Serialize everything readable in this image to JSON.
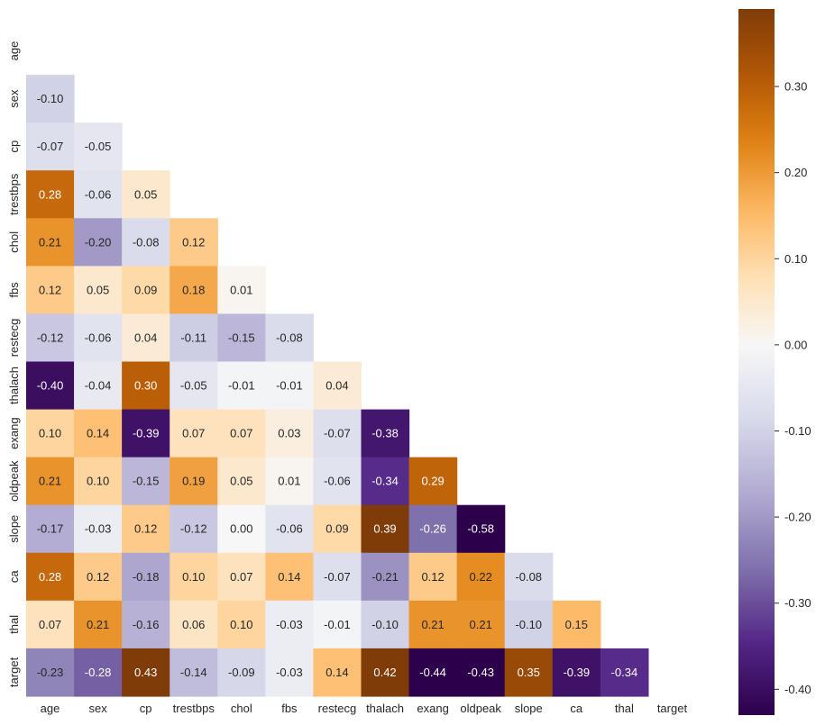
{
  "chart_data": {
    "type": "heatmap",
    "variables": [
      "age",
      "sex",
      "cp",
      "trestbps",
      "chol",
      "fbs",
      "restecg",
      "thalach",
      "exang",
      "oldpeak",
      "slope",
      "ca",
      "thal",
      "target"
    ],
    "mask": "upper-triangle-including-diagonal",
    "values": [
      [
        null,
        null,
        null,
        null,
        null,
        null,
        null,
        null,
        null,
        null,
        null,
        null,
        null,
        null
      ],
      [
        -0.1,
        null,
        null,
        null,
        null,
        null,
        null,
        null,
        null,
        null,
        null,
        null,
        null,
        null
      ],
      [
        -0.07,
        -0.05,
        null,
        null,
        null,
        null,
        null,
        null,
        null,
        null,
        null,
        null,
        null,
        null
      ],
      [
        0.28,
        -0.06,
        0.05,
        null,
        null,
        null,
        null,
        null,
        null,
        null,
        null,
        null,
        null,
        null
      ],
      [
        0.21,
        -0.2,
        -0.08,
        0.12,
        null,
        null,
        null,
        null,
        null,
        null,
        null,
        null,
        null,
        null
      ],
      [
        0.12,
        0.05,
        0.09,
        0.18,
        0.01,
        null,
        null,
        null,
        null,
        null,
        null,
        null,
        null,
        null
      ],
      [
        -0.12,
        -0.06,
        0.04,
        -0.11,
        -0.15,
        -0.08,
        null,
        null,
        null,
        null,
        null,
        null,
        null,
        null
      ],
      [
        -0.4,
        -0.04,
        0.3,
        -0.05,
        -0.01,
        -0.01,
        0.04,
        null,
        null,
        null,
        null,
        null,
        null,
        null
      ],
      [
        0.1,
        0.14,
        -0.39,
        0.07,
        0.07,
        0.03,
        -0.07,
        -0.38,
        null,
        null,
        null,
        null,
        null,
        null
      ],
      [
        0.21,
        0.1,
        -0.15,
        0.19,
        0.05,
        0.01,
        -0.06,
        -0.34,
        0.29,
        null,
        null,
        null,
        null,
        null
      ],
      [
        -0.17,
        -0.03,
        0.12,
        -0.12,
        -0.0,
        -0.06,
        0.09,
        0.39,
        -0.26,
        -0.58,
        null,
        null,
        null,
        null
      ],
      [
        0.28,
        0.12,
        -0.18,
        0.1,
        0.07,
        0.14,
        -0.07,
        -0.21,
        0.12,
        0.22,
        -0.08,
        null,
        null,
        null
      ],
      [
        0.07,
        0.21,
        -0.16,
        0.06,
        0.1,
        -0.03,
        -0.01,
        -0.1,
        0.21,
        0.21,
        -0.1,
        0.15,
        null,
        null
      ],
      [
        -0.23,
        -0.28,
        0.43,
        -0.14,
        -0.09,
        -0.03,
        0.14,
        0.42,
        -0.44,
        -0.43,
        0.35,
        -0.39,
        -0.34,
        null
      ]
    ],
    "value_format": "0.00",
    "colormap": "PuOr_r",
    "color_range": [
      -0.43,
      0.39
    ],
    "colorbar": {
      "ticks": [
        0.3,
        0.2,
        0.1,
        0.0,
        -0.1,
        -0.2,
        -0.3,
        -0.4
      ],
      "tick_labels": [
        "0.30",
        "0.20",
        "0.10",
        "0.00",
        "-0.10",
        "-0.20",
        "-0.30",
        "-0.40"
      ]
    },
    "colors": {
      "purple_end": "#2d004b",
      "mid": "#f7f7f7",
      "orange_end": "#7f3b08"
    },
    "title": "",
    "xlabel": "",
    "ylabel": ""
  }
}
